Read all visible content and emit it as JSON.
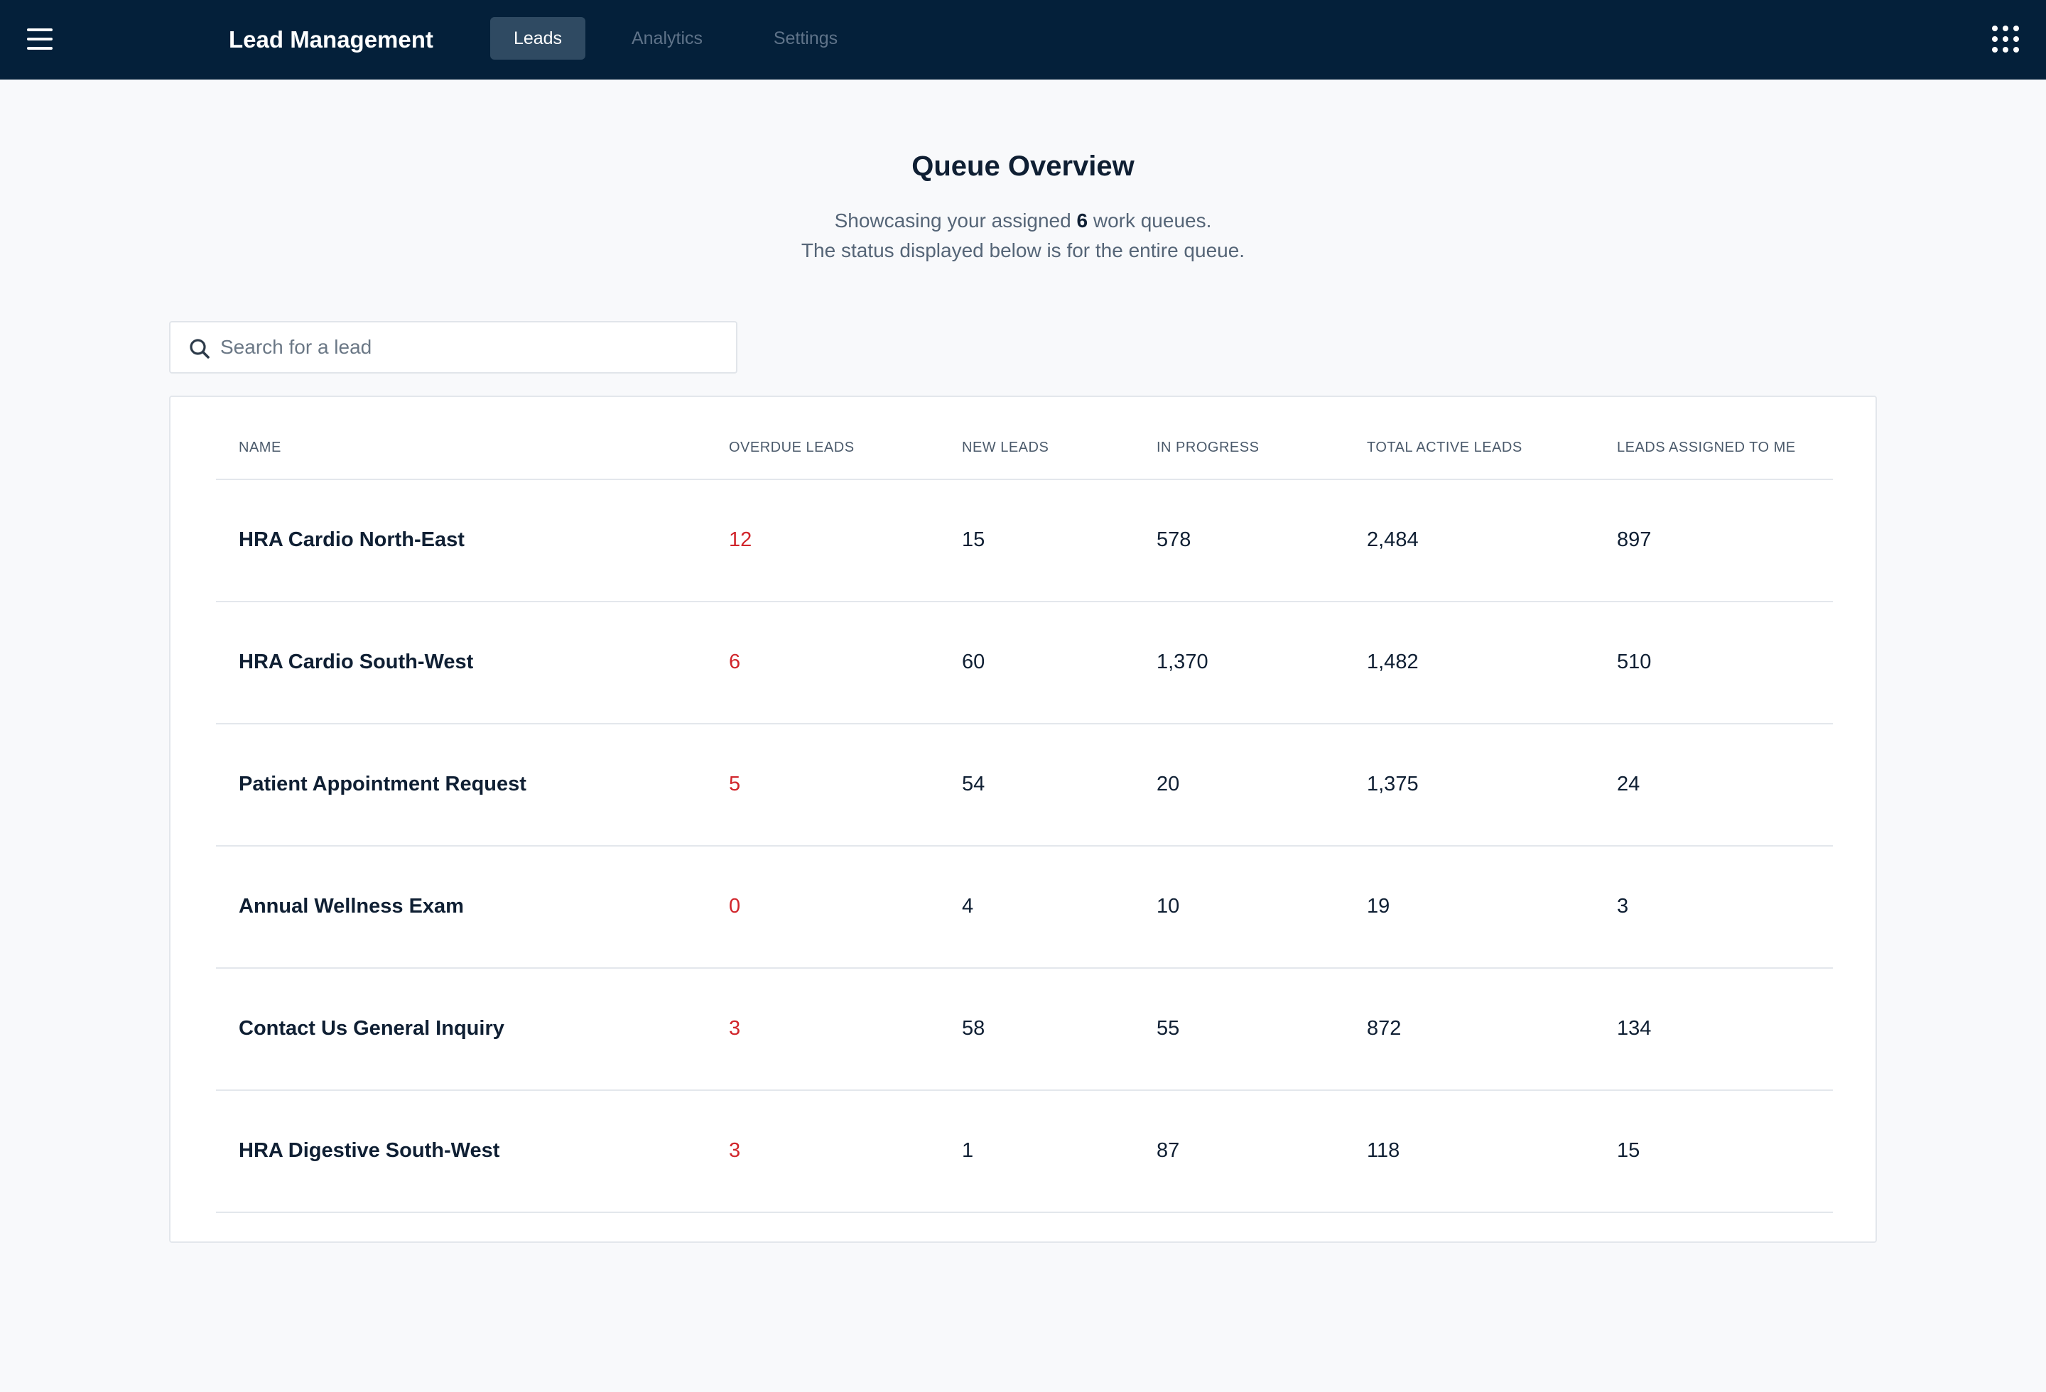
{
  "header": {
    "menu_icon": "hamburger-menu-icon",
    "app_title": "Lead Management",
    "tabs": [
      {
        "label": "Leads",
        "active": true
      },
      {
        "label": "Analytics",
        "active": false
      },
      {
        "label": "Settings",
        "active": false
      }
    ],
    "apps_icon": "app-grid-icon"
  },
  "overview": {
    "title": "Queue Overview",
    "subtitle_prefix": "Showcasing your assigned ",
    "queue_count": "6",
    "subtitle_suffix": " work queues.",
    "subtitle_line2": "The status displayed below is for the entire queue."
  },
  "search": {
    "icon": "search-icon",
    "placeholder": "Search for a lead",
    "value": ""
  },
  "table": {
    "columns": [
      "NAME",
      "OVERDUE LEADS",
      "NEW LEADS",
      "IN PROGRESS",
      "TOTAL ACTIVE LEADS",
      "LEADS ASSIGNED TO ME"
    ],
    "rows": [
      {
        "name": "HRA Cardio North-East",
        "overdue": "12",
        "new": "15",
        "in_progress": "578",
        "total_active": "2,484",
        "assigned_to_me": "897"
      },
      {
        "name": "HRA Cardio South-West",
        "overdue": "6",
        "new": "60",
        "in_progress": "1,370",
        "total_active": "1,482",
        "assigned_to_me": "510"
      },
      {
        "name": "Patient Appointment Request",
        "overdue": "5",
        "new": "54",
        "in_progress": "20",
        "total_active": "1,375",
        "assigned_to_me": "24"
      },
      {
        "name": "Annual Wellness Exam",
        "overdue": "0",
        "new": "4",
        "in_progress": "10",
        "total_active": "19",
        "assigned_to_me": "3"
      },
      {
        "name": "Contact Us General Inquiry",
        "overdue": "3",
        "new": "58",
        "in_progress": "55",
        "total_active": "872",
        "assigned_to_me": "134"
      },
      {
        "name": "HRA Digestive South-West",
        "overdue": "3",
        "new": "1",
        "in_progress": "87",
        "total_active": "118",
        "assigned_to_me": "15"
      }
    ]
  },
  "colors": {
    "header_bg": "#04203a",
    "active_tab_bg": "#2f4a62",
    "overdue_text": "#d1252b",
    "page_bg": "#f8f9fb"
  }
}
